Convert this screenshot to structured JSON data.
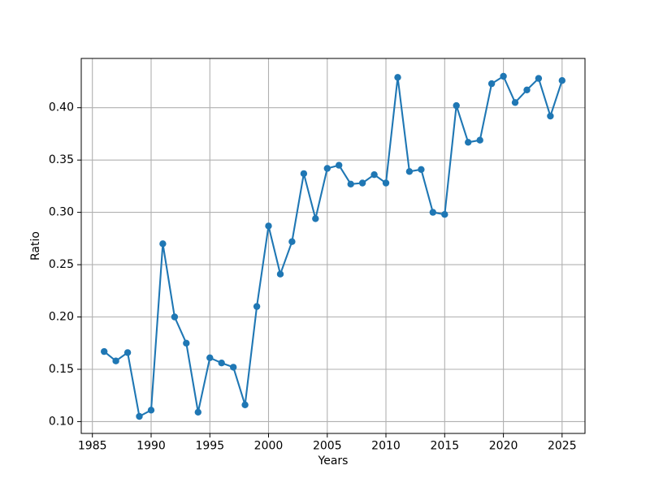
{
  "figure": {
    "background": "#ffffff",
    "text_color": "#000000"
  },
  "chart_data": {
    "type": "line",
    "title": "",
    "xlabel": "Years",
    "ylabel": "Ratio",
    "x": [
      1986,
      1987,
      1988,
      1989,
      1990,
      1991,
      1992,
      1993,
      1994,
      1995,
      1996,
      1997,
      1998,
      1999,
      2000,
      2001,
      2002,
      2003,
      2004,
      2005,
      2006,
      2007,
      2008,
      2009,
      2010,
      2011,
      2012,
      2013,
      2014,
      2015,
      2016,
      2017,
      2018,
      2019,
      2020,
      2021,
      2022,
      2023,
      2024,
      2025
    ],
    "series": [
      {
        "name": "Ratio",
        "color": "#1f77b4",
        "marker": "circle",
        "values": [
          0.167,
          0.158,
          0.166,
          0.105,
          0.111,
          0.27,
          0.2,
          0.175,
          0.109,
          0.161,
          0.156,
          0.152,
          0.116,
          0.21,
          0.287,
          0.241,
          0.272,
          0.337,
          0.294,
          0.342,
          0.345,
          0.327,
          0.328,
          0.336,
          0.328,
          0.429,
          0.339,
          0.341,
          0.3,
          0.298,
          0.402,
          0.367,
          0.369,
          0.423,
          0.43,
          0.405,
          0.417,
          0.428,
          0.392,
          0.426
        ]
      }
    ],
    "xticks": [
      1985,
      1990,
      1995,
      2000,
      2005,
      2010,
      2015,
      2020,
      2025
    ],
    "yticks": [
      0.1,
      0.15,
      0.2,
      0.25,
      0.3,
      0.35,
      0.4
    ],
    "xlim": [
      1984.05,
      2026.95
    ],
    "ylim": [
      0.0887,
      0.4471
    ],
    "grid": true,
    "grid_color": "#b0b0b0",
    "legend_position": "none"
  }
}
